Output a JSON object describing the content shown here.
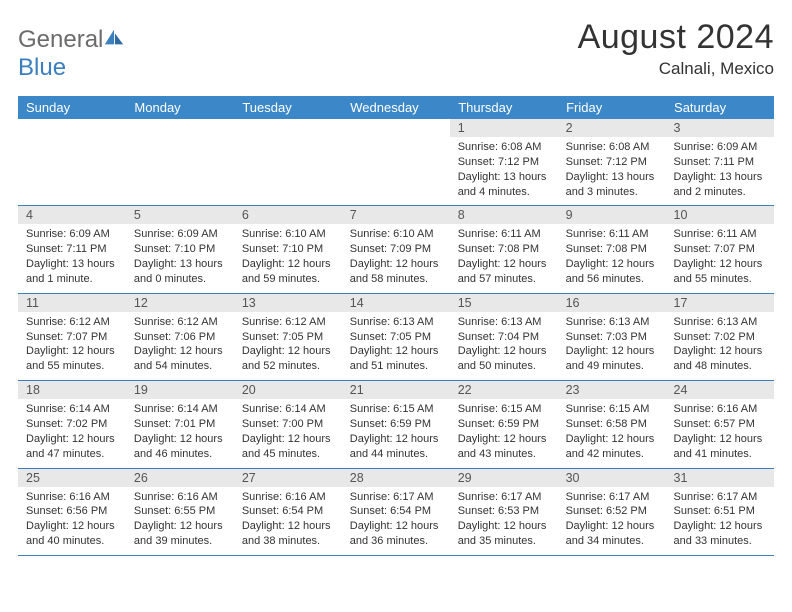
{
  "logo": {
    "word1": "General",
    "word2": "Blue"
  },
  "title": "August 2024",
  "location": "Calnali, Mexico",
  "colors": {
    "header_bg": "#3b87c8",
    "header_text": "#ffffff",
    "daynum_bg": "#e8e8e8",
    "border": "#3b7fbf",
    "body_text": "#333333",
    "logo_gray": "#6b6b6b",
    "logo_blue": "#3b7fbf"
  },
  "day_headers": [
    "Sunday",
    "Monday",
    "Tuesday",
    "Wednesday",
    "Thursday",
    "Friday",
    "Saturday"
  ],
  "weeks": [
    {
      "nums": [
        "",
        "",
        "",
        "",
        "1",
        "2",
        "3"
      ],
      "info": [
        "",
        "",
        "",
        "",
        "Sunrise: 6:08 AM\nSunset: 7:12 PM\nDaylight: 13 hours and 4 minutes.",
        "Sunrise: 6:08 AM\nSunset: 7:12 PM\nDaylight: 13 hours and 3 minutes.",
        "Sunrise: 6:09 AM\nSunset: 7:11 PM\nDaylight: 13 hours and 2 minutes."
      ]
    },
    {
      "nums": [
        "4",
        "5",
        "6",
        "7",
        "8",
        "9",
        "10"
      ],
      "info": [
        "Sunrise: 6:09 AM\nSunset: 7:11 PM\nDaylight: 13 hours and 1 minute.",
        "Sunrise: 6:09 AM\nSunset: 7:10 PM\nDaylight: 13 hours and 0 minutes.",
        "Sunrise: 6:10 AM\nSunset: 7:10 PM\nDaylight: 12 hours and 59 minutes.",
        "Sunrise: 6:10 AM\nSunset: 7:09 PM\nDaylight: 12 hours and 58 minutes.",
        "Sunrise: 6:11 AM\nSunset: 7:08 PM\nDaylight: 12 hours and 57 minutes.",
        "Sunrise: 6:11 AM\nSunset: 7:08 PM\nDaylight: 12 hours and 56 minutes.",
        "Sunrise: 6:11 AM\nSunset: 7:07 PM\nDaylight: 12 hours and 55 minutes."
      ]
    },
    {
      "nums": [
        "11",
        "12",
        "13",
        "14",
        "15",
        "16",
        "17"
      ],
      "info": [
        "Sunrise: 6:12 AM\nSunset: 7:07 PM\nDaylight: 12 hours and 55 minutes.",
        "Sunrise: 6:12 AM\nSunset: 7:06 PM\nDaylight: 12 hours and 54 minutes.",
        "Sunrise: 6:12 AM\nSunset: 7:05 PM\nDaylight: 12 hours and 52 minutes.",
        "Sunrise: 6:13 AM\nSunset: 7:05 PM\nDaylight: 12 hours and 51 minutes.",
        "Sunrise: 6:13 AM\nSunset: 7:04 PM\nDaylight: 12 hours and 50 minutes.",
        "Sunrise: 6:13 AM\nSunset: 7:03 PM\nDaylight: 12 hours and 49 minutes.",
        "Sunrise: 6:13 AM\nSunset: 7:02 PM\nDaylight: 12 hours and 48 minutes."
      ]
    },
    {
      "nums": [
        "18",
        "19",
        "20",
        "21",
        "22",
        "23",
        "24"
      ],
      "info": [
        "Sunrise: 6:14 AM\nSunset: 7:02 PM\nDaylight: 12 hours and 47 minutes.",
        "Sunrise: 6:14 AM\nSunset: 7:01 PM\nDaylight: 12 hours and 46 minutes.",
        "Sunrise: 6:14 AM\nSunset: 7:00 PM\nDaylight: 12 hours and 45 minutes.",
        "Sunrise: 6:15 AM\nSunset: 6:59 PM\nDaylight: 12 hours and 44 minutes.",
        "Sunrise: 6:15 AM\nSunset: 6:59 PM\nDaylight: 12 hours and 43 minutes.",
        "Sunrise: 6:15 AM\nSunset: 6:58 PM\nDaylight: 12 hours and 42 minutes.",
        "Sunrise: 6:16 AM\nSunset: 6:57 PM\nDaylight: 12 hours and 41 minutes."
      ]
    },
    {
      "nums": [
        "25",
        "26",
        "27",
        "28",
        "29",
        "30",
        "31"
      ],
      "info": [
        "Sunrise: 6:16 AM\nSunset: 6:56 PM\nDaylight: 12 hours and 40 minutes.",
        "Sunrise: 6:16 AM\nSunset: 6:55 PM\nDaylight: 12 hours and 39 minutes.",
        "Sunrise: 6:16 AM\nSunset: 6:54 PM\nDaylight: 12 hours and 38 minutes.",
        "Sunrise: 6:17 AM\nSunset: 6:54 PM\nDaylight: 12 hours and 36 minutes.",
        "Sunrise: 6:17 AM\nSunset: 6:53 PM\nDaylight: 12 hours and 35 minutes.",
        "Sunrise: 6:17 AM\nSunset: 6:52 PM\nDaylight: 12 hours and 34 minutes.",
        "Sunrise: 6:17 AM\nSunset: 6:51 PM\nDaylight: 12 hours and 33 minutes."
      ]
    }
  ]
}
